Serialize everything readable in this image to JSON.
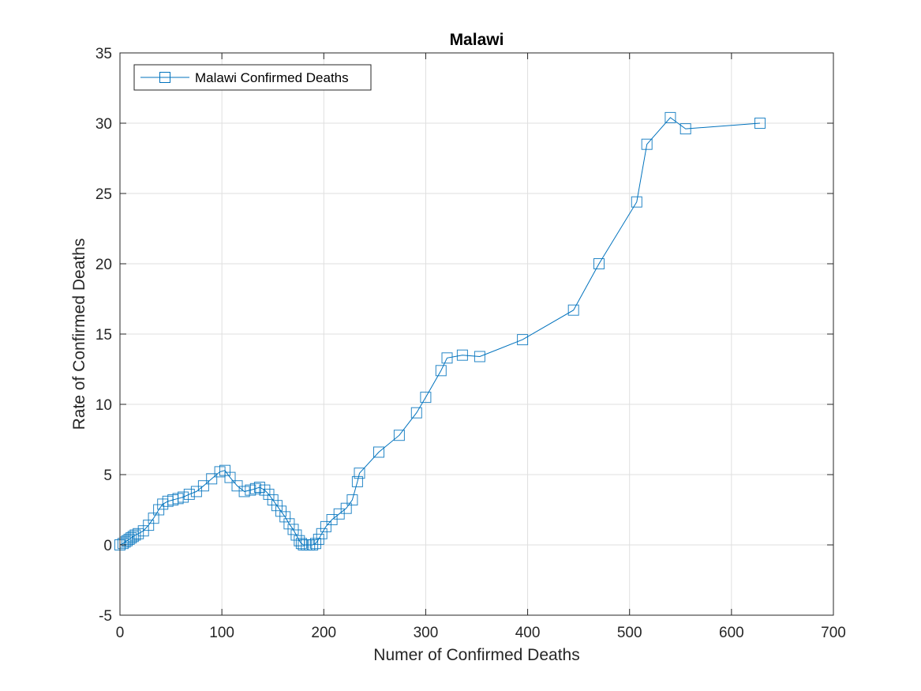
{
  "chart_data": {
    "type": "line",
    "title": "Malawi",
    "xlabel": "Numer of Confirmed Deaths",
    "ylabel": "Rate of Confirmed Deaths",
    "xlim": [
      0,
      700
    ],
    "ylim": [
      -5,
      35
    ],
    "xticks": [
      0,
      100,
      200,
      300,
      400,
      500,
      600,
      700
    ],
    "yticks": [
      -5,
      0,
      5,
      10,
      15,
      20,
      25,
      30,
      35
    ],
    "xtick_labels": [
      "0",
      "100",
      "200",
      "300",
      "400",
      "500",
      "600",
      "700"
    ],
    "ytick_labels": [
      "-5",
      "0",
      "5",
      "10",
      "15",
      "20",
      "25",
      "30",
      "35"
    ],
    "grid": true,
    "legend_position": "top-left",
    "series": [
      {
        "name": "Malawi Confirmed Deaths",
        "color": "#0072BD",
        "marker": "square",
        "x": [
          0,
          3,
          5,
          7,
          9,
          11,
          13,
          15,
          18,
          23,
          28,
          33,
          38,
          42,
          47,
          52,
          57,
          62,
          68,
          75,
          82,
          90,
          98,
          103,
          108,
          115,
          122,
          128,
          133,
          137,
          142,
          146,
          150,
          154,
          158,
          162,
          166,
          170,
          173,
          176,
          178,
          180,
          183,
          186,
          189,
          192,
          195,
          198,
          202,
          208,
          215,
          222,
          228,
          233,
          235,
          254,
          274,
          291,
          300,
          315,
          321,
          336,
          353,
          395,
          445,
          470,
          507,
          517,
          540,
          555,
          628
        ],
        "y": [
          0,
          0.1,
          0.2,
          0.3,
          0.4,
          0.5,
          0.6,
          0.7,
          0.8,
          1.0,
          1.4,
          1.9,
          2.5,
          2.9,
          3.1,
          3.2,
          3.3,
          3.4,
          3.6,
          3.8,
          4.2,
          4.7,
          5.2,
          5.3,
          4.8,
          4.2,
          3.8,
          3.9,
          4.0,
          4.1,
          3.9,
          3.6,
          3.2,
          2.8,
          2.4,
          2.0,
          1.5,
          1.1,
          0.7,
          0.3,
          0.1,
          0,
          0,
          0,
          0,
          0.1,
          0.4,
          0.8,
          1.3,
          1.8,
          2.2,
          2.6,
          3.2,
          4.5,
          5.1,
          6.6,
          7.8,
          9.4,
          10.5,
          12.4,
          13.3,
          13.5,
          13.4,
          14.6,
          16.7,
          20.0,
          24.4,
          28.5,
          30.4,
          29.6,
          30.0
        ]
      }
    ]
  }
}
